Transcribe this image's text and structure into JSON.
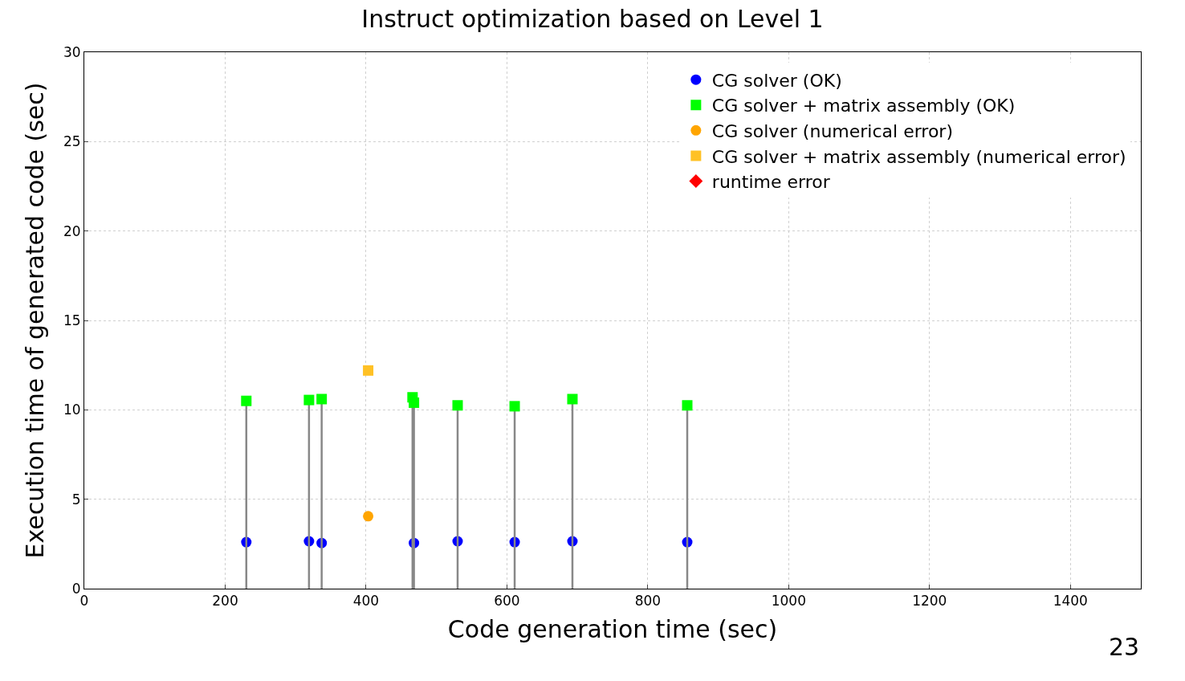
{
  "chart_data": {
    "type": "scatter",
    "title": "Instruct optimization based on Level 1",
    "xlabel": "Code generation time (sec)",
    "ylabel": "Execution time of generated code (sec)",
    "xlim": [
      0,
      1500
    ],
    "xticks": [
      0,
      200,
      400,
      600,
      800,
      1000,
      1200,
      1400
    ],
    "ylim": [
      0,
      30
    ],
    "yticks": [
      0,
      5,
      10,
      15,
      20,
      25,
      30
    ],
    "grid": true,
    "legend": "top right",
    "series": [
      {
        "name": "CG solver (OK)",
        "color": "#0000ff",
        "marker": "circle",
        "x": [
          230,
          319,
          337,
          466,
          468,
          530,
          611,
          693,
          856
        ],
        "values": [
          2.6,
          2.65,
          2.55,
          null,
          2.55,
          2.65,
          2.6,
          2.65,
          2.6
        ]
      },
      {
        "name": "CG solver + matrix assembly (OK)",
        "type": "lollipop",
        "color": "#00ff00",
        "marker": "square",
        "x": [
          230,
          319,
          337,
          466,
          468,
          530,
          611,
          693,
          856
        ],
        "values": [
          10.5,
          10.55,
          10.6,
          10.7,
          10.4,
          10.25,
          10.2,
          10.6,
          10.25
        ]
      },
      {
        "name": "CG solver (numerical error)",
        "color": "#ffa500",
        "marker": "circle",
        "x": [
          403
        ],
        "values": [
          4.05
        ]
      },
      {
        "name": "CG solver + matrix assembly (numerical error)",
        "color": "#ffc125",
        "marker": "square",
        "x": [
          403
        ],
        "values": [
          12.2
        ]
      },
      {
        "name": "runtime error",
        "color": "#ff0000",
        "marker": "diamond"
      }
    ],
    "annotations": [
      "23"
    ]
  }
}
